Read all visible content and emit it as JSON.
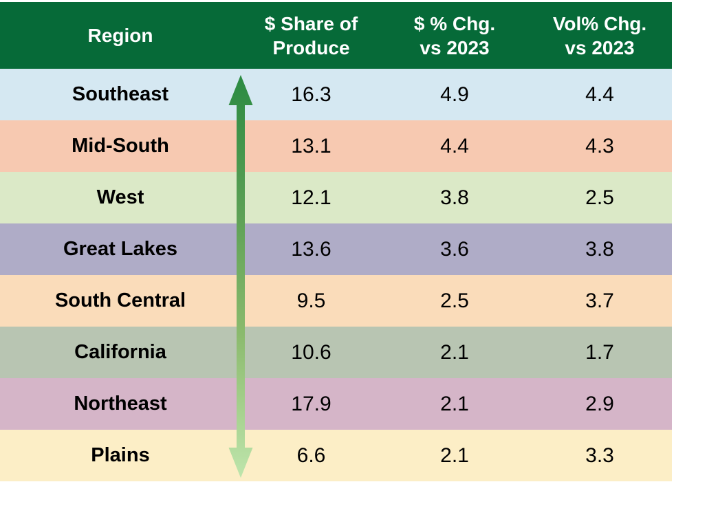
{
  "chart_data": {
    "type": "table",
    "title": "",
    "columns": [
      {
        "id": "region",
        "lines": [
          "Region",
          ""
        ]
      },
      {
        "id": "share",
        "lines": [
          "$ Share of",
          "Produce"
        ]
      },
      {
        "id": "dollar_chg",
        "lines": [
          "$ % Chg.",
          "vs 2023"
        ]
      },
      {
        "id": "vol_chg",
        "lines": [
          "Vol% Chg.",
          "vs 2023"
        ]
      }
    ],
    "rows": [
      {
        "region": "Southeast",
        "share": "16.3",
        "dollar_chg": "4.9",
        "vol_chg": "4.4",
        "bg": "#d5e8f2"
      },
      {
        "region": "Mid-South",
        "share": "13.1",
        "dollar_chg": "4.4",
        "vol_chg": "4.3",
        "bg": "#f7c9b1"
      },
      {
        "region": "West",
        "share": "12.1",
        "dollar_chg": "3.8",
        "vol_chg": "2.5",
        "bg": "#dbe9c7"
      },
      {
        "region": "Great Lakes",
        "share": "13.6",
        "dollar_chg": "3.6",
        "vol_chg": "3.8",
        "bg": "#afacc7"
      },
      {
        "region": "South Central",
        "share": "9.5",
        "dollar_chg": "2.5",
        "vol_chg": "3.7",
        "bg": "#fadcba"
      },
      {
        "region": "California",
        "share": "10.6",
        "dollar_chg": "2.1",
        "vol_chg": "1.7",
        "bg": "#b8c5b2"
      },
      {
        "region": "Northeast",
        "share": "17.9",
        "dollar_chg": "2.1",
        "vol_chg": "2.9",
        "bg": "#d5b5c8"
      },
      {
        "region": "Plains",
        "share": "6.6",
        "dollar_chg": "2.1",
        "vol_chg": "3.3",
        "bg": "#fceec6"
      }
    ],
    "annotations": {
      "arrow": "vertical double-headed arrow beside Region column, dark green at top fading to light green at bottom, indicating rows sorted by $ % Chg. vs 2023 descending"
    }
  },
  "styles": {
    "header_bg": "#066a38",
    "header_text_color": "#ffffff",
    "arrow_gradient": [
      "#2b8a42",
      "#5da156",
      "#8cbb6e",
      "#bee5ac"
    ]
  }
}
